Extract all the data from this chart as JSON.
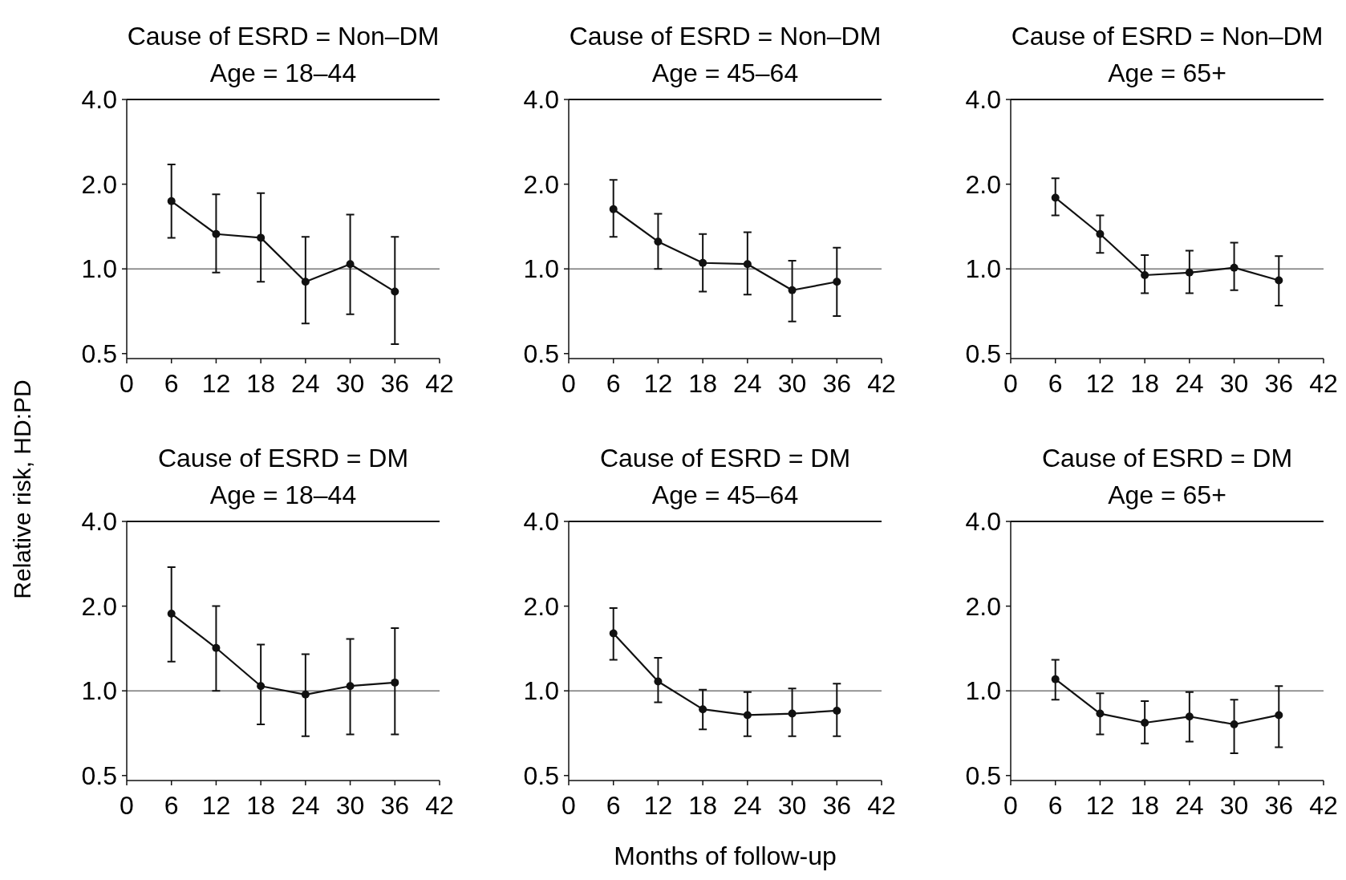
{
  "chart_data": [
    {
      "type": "line",
      "title": "Cause of ESRD = Non–DM",
      "subtitle": "Age = 18–44",
      "ylabel": "Relative risk, HD:PD",
      "x": [
        6,
        12,
        18,
        24,
        30,
        36
      ],
      "series": [
        {
          "color": "#111111",
          "values": [
            1.74,
            1.33,
            1.29,
            0.9,
            1.04,
            0.83
          ],
          "errors": [
            [
              1.29,
              2.35
            ],
            [
              0.97,
              1.84
            ],
            [
              0.9,
              1.86
            ],
            [
              0.64,
              1.3
            ],
            [
              0.69,
              1.56
            ],
            [
              0.54,
              1.3
            ]
          ]
        }
      ],
      "log": "y",
      "xlim": [
        0,
        42
      ],
      "xticks": [
        0,
        6,
        12,
        18,
        24,
        30,
        36,
        42
      ],
      "ylim": [
        0.48,
        4
      ],
      "yticks": [
        {
          "value": 0.5,
          "label": "0.5"
        },
        {
          "value": 1,
          "label": "1.0"
        },
        {
          "value": 2,
          "label": "2.0"
        },
        {
          "value": 4,
          "label": "4.0"
        }
      ],
      "ref_lines": [
        {
          "axis": "y",
          "value": 1,
          "color": "#777777"
        }
      ],
      "marker": "circle"
    },
    {
      "type": "line",
      "title": "Cause of ESRD = Non–DM",
      "subtitle": "Age = 45–64",
      "x": [
        6,
        12,
        18,
        24,
        30,
        36
      ],
      "series": [
        {
          "color": "#111111",
          "values": [
            1.63,
            1.25,
            1.05,
            1.04,
            0.84,
            0.9
          ],
          "errors": [
            [
              1.3,
              2.07
            ],
            [
              1.0,
              1.57
            ],
            [
              0.83,
              1.33
            ],
            [
              0.81,
              1.35
            ],
            [
              0.65,
              1.07
            ],
            [
              0.68,
              1.19
            ]
          ]
        }
      ],
      "log": "y",
      "xlim": [
        0,
        42
      ],
      "xticks": [
        0,
        6,
        12,
        18,
        24,
        30,
        36,
        42
      ],
      "ylim": [
        0.48,
        4
      ],
      "yticks": [
        {
          "value": 0.5,
          "label": "0.5"
        },
        {
          "value": 1,
          "label": "1.0"
        },
        {
          "value": 2,
          "label": "2.0"
        },
        {
          "value": 4,
          "label": "4.0"
        }
      ],
      "ref_lines": [
        {
          "axis": "y",
          "value": 1,
          "color": "#777777"
        }
      ],
      "marker": "circle"
    },
    {
      "type": "line",
      "title": "Cause of ESRD = Non–DM",
      "subtitle": "Age = 65+",
      "x": [
        6,
        12,
        18,
        24,
        30,
        36
      ],
      "series": [
        {
          "color": "#111111",
          "values": [
            1.79,
            1.33,
            0.95,
            0.97,
            1.01,
            0.91
          ],
          "errors": [
            [
              1.55,
              2.1
            ],
            [
              1.14,
              1.55
            ],
            [
              0.82,
              1.12
            ],
            [
              0.82,
              1.16
            ],
            [
              0.84,
              1.24
            ],
            [
              0.74,
              1.11
            ]
          ]
        }
      ],
      "log": "y",
      "xlim": [
        0,
        42
      ],
      "xticks": [
        0,
        6,
        12,
        18,
        24,
        30,
        36,
        42
      ],
      "ylim": [
        0.48,
        4
      ],
      "yticks": [
        {
          "value": 0.5,
          "label": "0.5"
        },
        {
          "value": 1,
          "label": "1.0"
        },
        {
          "value": 2,
          "label": "2.0"
        },
        {
          "value": 4,
          "label": "4.0"
        }
      ],
      "ref_lines": [
        {
          "axis": "y",
          "value": 1,
          "color": "#777777"
        }
      ],
      "marker": "circle"
    },
    {
      "type": "line",
      "title": "Cause of ESRD = DM",
      "subtitle": "Age = 18–44",
      "x": [
        6,
        12,
        18,
        24,
        30,
        36
      ],
      "series": [
        {
          "color": "#111111",
          "values": [
            1.88,
            1.42,
            1.04,
            0.97,
            1.04,
            1.07
          ],
          "errors": [
            [
              1.27,
              2.75
            ],
            [
              1.0,
              2.0
            ],
            [
              0.76,
              1.46
            ],
            [
              0.69,
              1.35
            ],
            [
              0.7,
              1.53
            ],
            [
              0.7,
              1.67
            ]
          ]
        }
      ],
      "log": "y",
      "xlim": [
        0,
        42
      ],
      "xticks": [
        0,
        6,
        12,
        18,
        24,
        30,
        36,
        42
      ],
      "ylim": [
        0.48,
        4
      ],
      "yticks": [
        {
          "value": 0.5,
          "label": "0.5"
        },
        {
          "value": 1,
          "label": "1.0"
        },
        {
          "value": 2,
          "label": "2.0"
        },
        {
          "value": 4,
          "label": "4.0"
        }
      ],
      "ref_lines": [
        {
          "axis": "y",
          "value": 1,
          "color": "#777777"
        }
      ],
      "marker": "circle"
    },
    {
      "type": "line",
      "title": "Cause of ESRD = DM",
      "subtitle": "Age = 45–64",
      "xlabel": "Months of follow-up",
      "x": [
        6,
        12,
        18,
        24,
        30,
        36
      ],
      "series": [
        {
          "color": "#111111",
          "values": [
            1.6,
            1.08,
            0.86,
            0.82,
            0.83,
            0.85
          ],
          "errors": [
            [
              1.29,
              1.97
            ],
            [
              0.91,
              1.31
            ],
            [
              0.73,
              1.01
            ],
            [
              0.69,
              0.99
            ],
            [
              0.69,
              1.02
            ],
            [
              0.69,
              1.06
            ]
          ]
        }
      ],
      "log": "y",
      "xlim": [
        0,
        42
      ],
      "xticks": [
        0,
        6,
        12,
        18,
        24,
        30,
        36,
        42
      ],
      "ylim": [
        0.48,
        4
      ],
      "yticks": [
        {
          "value": 0.5,
          "label": "0.5"
        },
        {
          "value": 1,
          "label": "1.0"
        },
        {
          "value": 2,
          "label": "2.0"
        },
        {
          "value": 4,
          "label": "4.0"
        }
      ],
      "ref_lines": [
        {
          "axis": "y",
          "value": 1,
          "color": "#777777"
        }
      ],
      "marker": "circle"
    },
    {
      "type": "line",
      "title": "Cause of ESRD = DM",
      "subtitle": "Age = 65+",
      "x": [
        6,
        12,
        18,
        24,
        30,
        36
      ],
      "series": [
        {
          "color": "#111111",
          "values": [
            1.1,
            0.83,
            0.77,
            0.81,
            0.76,
            0.82
          ],
          "errors": [
            [
              0.93,
              1.29
            ],
            [
              0.7,
              0.98
            ],
            [
              0.65,
              0.92
            ],
            [
              0.66,
              0.99
            ],
            [
              0.6,
              0.93
            ],
            [
              0.63,
              1.04
            ]
          ]
        }
      ],
      "log": "y",
      "xlim": [
        0,
        42
      ],
      "xticks": [
        0,
        6,
        12,
        18,
        24,
        30,
        36,
        42
      ],
      "ylim": [
        0.48,
        4
      ],
      "yticks": [
        {
          "value": 0.5,
          "label": "0.5"
        },
        {
          "value": 1,
          "label": "1.0"
        },
        {
          "value": 2,
          "label": "2.0"
        },
        {
          "value": 4,
          "label": "4.0"
        }
      ],
      "ref_lines": [
        {
          "axis": "y",
          "value": 1,
          "color": "#777777"
        }
      ],
      "marker": "circle"
    }
  ]
}
